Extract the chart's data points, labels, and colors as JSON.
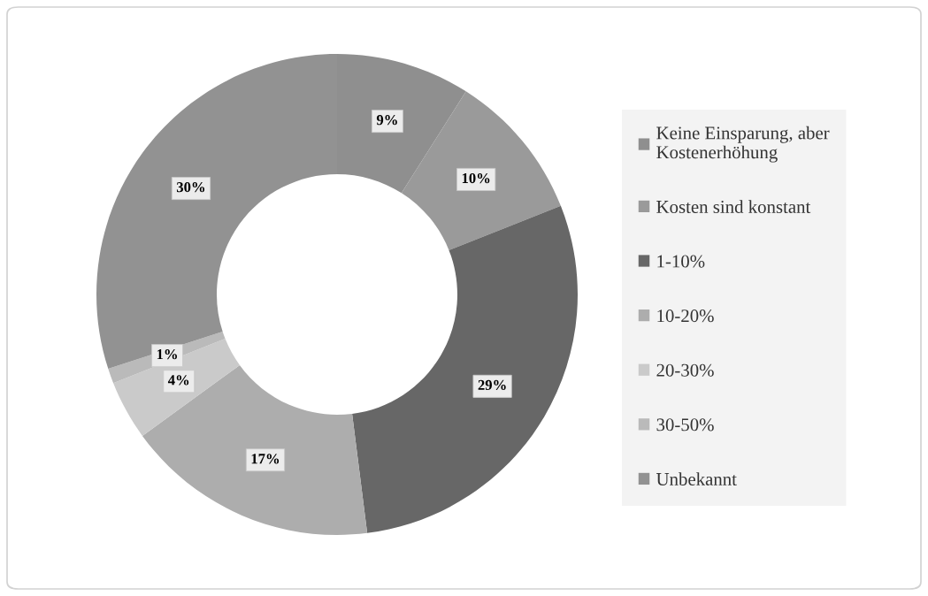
{
  "chart_data": {
    "type": "donut",
    "categories": [
      "Keine Einsparung, aber\nKostenerhöhung",
      "Kosten sind konstant",
      "1-10%",
      "10-20%",
      "20-30%",
      "30-50%",
      "Unbekannt"
    ],
    "values": [
      9,
      10,
      29,
      17,
      4,
      1,
      30
    ],
    "colors": [
      "#8f8f8f",
      "#9a9a9a",
      "#676767",
      "#adadad",
      "#cacaca",
      "#bababa",
      "#929292"
    ],
    "value_labels": [
      "9%",
      "10%",
      "29%",
      "17%",
      "4%",
      "1%",
      "30%"
    ],
    "legend": "right"
  }
}
